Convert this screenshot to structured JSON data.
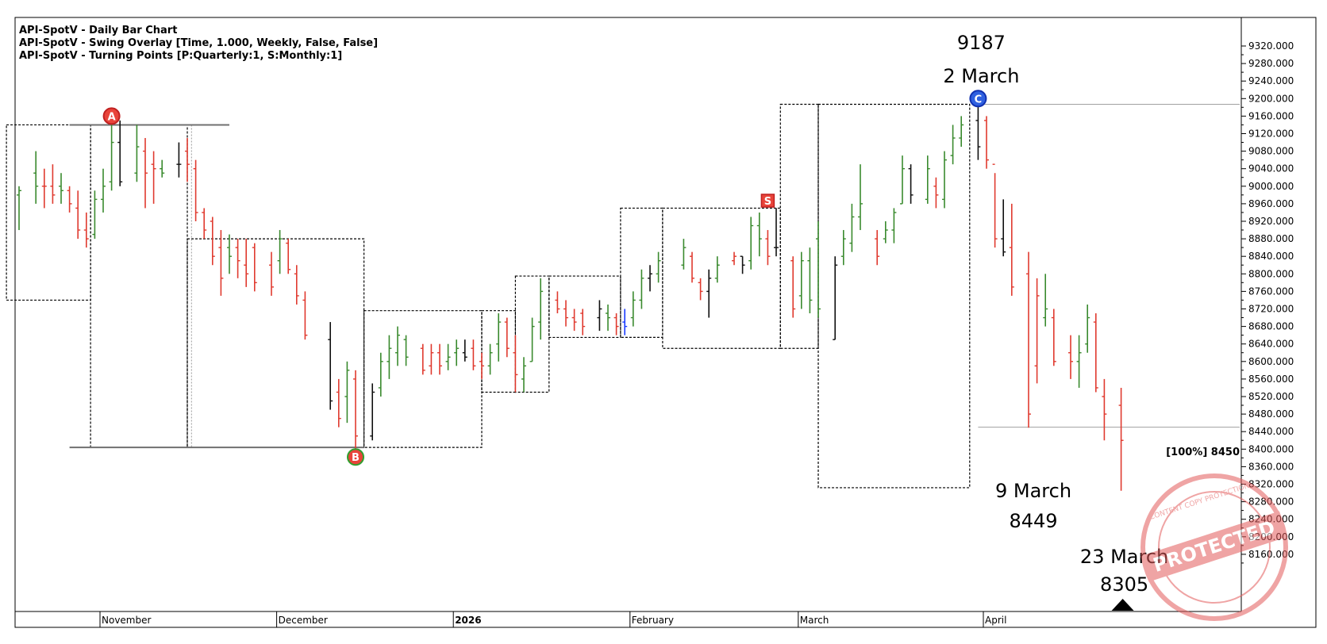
{
  "header": [
    "API-SpotV - Daily Bar Chart",
    "API-SpotV - Swing Overlay [Time, 1.000, Weekly, False, False]",
    "API-SpotV - Turning Points [P:Quarterly:1, S:Monthly:1]"
  ],
  "colors": {
    "up": "#3a8a2e",
    "down": "#e03a2f",
    "neutral": "#111111",
    "blue": "#1a3cff",
    "level_line": "#7a7a7a",
    "stamp": "#e35b5b"
  },
  "chart_data": {
    "type": "ohlc",
    "ylim": [
      8130,
      9335
    ],
    "y_ticks": [
      9320,
      9280,
      9240,
      9200,
      9160,
      9120,
      9080,
      9040,
      9000,
      8960,
      8920,
      8880,
      8840,
      8800,
      8760,
      8720,
      8680,
      8640,
      8600,
      8560,
      8520,
      8480,
      8440,
      8400,
      8360,
      8320,
      8280,
      8240,
      8200,
      8160
    ],
    "y_tick_labels": [
      "9320.000",
      "9280.000",
      "9240.000",
      "9200.000",
      "9160.000",
      "9120.000",
      "9080.000",
      "9040.000",
      "9000.000",
      "8960.000",
      "8920.000",
      "8880.000",
      "8840.000",
      "8800.000",
      "8760.000",
      "8720.000",
      "8680.000",
      "8640.000",
      "8600.000",
      "8560.000",
      "8520.000",
      "8480.000",
      "8440.000",
      "8400.000",
      "8360.000",
      "8320.000",
      "8280.000",
      "8240.000",
      "8200.000",
      "8160.000"
    ],
    "x_months": [
      {
        "label": "November",
        "bar": 10,
        "bold": false
      },
      {
        "label": "December",
        "bar": 31,
        "bold": false
      },
      {
        "label": "2026",
        "bar": 52,
        "bold": true
      },
      {
        "label": "February",
        "bar": 73,
        "bold": false
      },
      {
        "label": "March",
        "bar": 93,
        "bold": false
      },
      {
        "label": "April",
        "bar": 115,
        "bold": false
      }
    ],
    "bars": [
      {
        "i": 0,
        "o": 8980,
        "h": 9000,
        "l": 8900,
        "c": 8990,
        "d": "up"
      },
      {
        "i": 2,
        "o": 9030,
        "h": 9080,
        "l": 8960,
        "c": 9000,
        "d": "up"
      },
      {
        "i": 3,
        "o": 9000,
        "h": 9040,
        "l": 8950,
        "c": 9000,
        "d": "down"
      },
      {
        "i": 4,
        "o": 9000,
        "h": 9050,
        "l": 8960,
        "c": 8980,
        "d": "down"
      },
      {
        "i": 5,
        "o": 9000,
        "h": 9030,
        "l": 8960,
        "c": 8990,
        "d": "up"
      },
      {
        "i": 6,
        "o": 8990,
        "h": 9000,
        "l": 8940,
        "c": 8960,
        "d": "down"
      },
      {
        "i": 7,
        "o": 8950,
        "h": 8990,
        "l": 8880,
        "c": 8900,
        "d": "down"
      },
      {
        "i": 8,
        "o": 8900,
        "h": 8940,
        "l": 8860,
        "c": 8880,
        "d": "down"
      },
      {
        "i": 9,
        "o": 8890,
        "h": 8990,
        "l": 8880,
        "c": 8970,
        "d": "up"
      },
      {
        "i": 10,
        "o": 8970,
        "h": 9040,
        "l": 8940,
        "c": 9000,
        "d": "up"
      },
      {
        "i": 11,
        "o": 9010,
        "h": 9140,
        "l": 8990,
        "c": 9100,
        "d": "up"
      },
      {
        "i": 12,
        "o": 9100,
        "h": 9150,
        "l": 9000,
        "c": 9010,
        "d": "neutral"
      },
      {
        "i": 14,
        "o": 9030,
        "h": 9140,
        "l": 9010,
        "c": 9090,
        "d": "up"
      },
      {
        "i": 15,
        "o": 9080,
        "h": 9110,
        "l": 8950,
        "c": 9030,
        "d": "down"
      },
      {
        "i": 16,
        "o": 9050,
        "h": 9080,
        "l": 8960,
        "c": 9040,
        "d": "down"
      },
      {
        "i": 17,
        "o": 9040,
        "h": 9060,
        "l": 9020,
        "c": 9030,
        "d": "up"
      },
      {
        "i": 19,
        "o": 9050,
        "h": 9100,
        "l": 9020,
        "c": 9050,
        "d": "neutral"
      },
      {
        "i": 20,
        "o": 9080,
        "h": 9110,
        "l": 9010,
        "c": 9050,
        "d": "down"
      },
      {
        "i": 21,
        "o": 9040,
        "h": 9060,
        "l": 8920,
        "c": 8940,
        "d": "down"
      },
      {
        "i": 22,
        "o": 8940,
        "h": 8950,
        "l": 8880,
        "c": 8900,
        "d": "down"
      },
      {
        "i": 23,
        "o": 8920,
        "h": 8930,
        "l": 8820,
        "c": 8840,
        "d": "down"
      },
      {
        "i": 24,
        "o": 8860,
        "h": 8900,
        "l": 8750,
        "c": 8790,
        "d": "down"
      },
      {
        "i": 25,
        "o": 8860,
        "h": 8890,
        "l": 8800,
        "c": 8840,
        "d": "up"
      },
      {
        "i": 26,
        "o": 8860,
        "h": 8880,
        "l": 8790,
        "c": 8830,
        "d": "down"
      },
      {
        "i": 27,
        "o": 8820,
        "h": 8880,
        "l": 8770,
        "c": 8800,
        "d": "down"
      },
      {
        "i": 28,
        "o": 8860,
        "h": 8870,
        "l": 8760,
        "c": 8780,
        "d": "down"
      },
      {
        "i": 30,
        "o": 8820,
        "h": 8850,
        "l": 8750,
        "c": 8770,
        "d": "down"
      },
      {
        "i": 31,
        "o": 8830,
        "h": 8900,
        "l": 8800,
        "c": 8880,
        "d": "up"
      },
      {
        "i": 32,
        "o": 8870,
        "h": 8880,
        "l": 8800,
        "c": 8810,
        "d": "down"
      },
      {
        "i": 33,
        "o": 8800,
        "h": 8820,
        "l": 8730,
        "c": 8750,
        "d": "down"
      },
      {
        "i": 34,
        "o": 8740,
        "h": 8760,
        "l": 8650,
        "c": 8660,
        "d": "down"
      },
      {
        "i": 37,
        "o": 8650,
        "h": 8690,
        "l": 8490,
        "c": 8510,
        "d": "neutral"
      },
      {
        "i": 38,
        "o": 8530,
        "h": 8560,
        "l": 8450,
        "c": 8470,
        "d": "down"
      },
      {
        "i": 39,
        "o": 8520,
        "h": 8600,
        "l": 8460,
        "c": 8580,
        "d": "up"
      },
      {
        "i": 40,
        "o": 8560,
        "h": 8580,
        "l": 8400,
        "c": 8430,
        "d": "down"
      },
      {
        "i": 42,
        "o": 8430,
        "h": 8550,
        "l": 8420,
        "c": 8530,
        "d": "neutral"
      },
      {
        "i": 43,
        "o": 8540,
        "h": 8620,
        "l": 8520,
        "c": 8600,
        "d": "up"
      },
      {
        "i": 44,
        "o": 8600,
        "h": 8660,
        "l": 8560,
        "c": 8630,
        "d": "up"
      },
      {
        "i": 45,
        "o": 8620,
        "h": 8680,
        "l": 8590,
        "c": 8660,
        "d": "up"
      },
      {
        "i": 46,
        "o": 8650,
        "h": 8660,
        "l": 8590,
        "c": 8610,
        "d": "up"
      },
      {
        "i": 48,
        "o": 8630,
        "h": 8640,
        "l": 8570,
        "c": 8580,
        "d": "down"
      },
      {
        "i": 49,
        "o": 8590,
        "h": 8640,
        "l": 8570,
        "c": 8620,
        "d": "down"
      },
      {
        "i": 50,
        "o": 8620,
        "h": 8640,
        "l": 8570,
        "c": 8590,
        "d": "down"
      },
      {
        "i": 51,
        "o": 8600,
        "h": 8640,
        "l": 8580,
        "c": 8610,
        "d": "up"
      },
      {
        "i": 52,
        "o": 8620,
        "h": 8650,
        "l": 8590,
        "c": 8630,
        "d": "up"
      },
      {
        "i": 53,
        "o": 8620,
        "h": 8650,
        "l": 8600,
        "c": 8610,
        "d": "neutral"
      },
      {
        "i": 54,
        "o": 8630,
        "h": 8650,
        "l": 8580,
        "c": 8590,
        "d": "down"
      },
      {
        "i": 55,
        "o": 8600,
        "h": 8620,
        "l": 8560,
        "c": 8590,
        "d": "down"
      },
      {
        "i": 56,
        "o": 8590,
        "h": 8640,
        "l": 8570,
        "c": 8620,
        "d": "up"
      },
      {
        "i": 57,
        "o": 8640,
        "h": 8710,
        "l": 8600,
        "c": 8690,
        "d": "up"
      },
      {
        "i": 58,
        "o": 8690,
        "h": 8700,
        "l": 8610,
        "c": 8630,
        "d": "down"
      },
      {
        "i": 59,
        "o": 8620,
        "h": 8660,
        "l": 8530,
        "c": 8570,
        "d": "down"
      },
      {
        "i": 60,
        "o": 8560,
        "h": 8610,
        "l": 8530,
        "c": 8590,
        "d": "up"
      },
      {
        "i": 61,
        "o": 8600,
        "h": 8700,
        "l": 8600,
        "c": 8680,
        "d": "up"
      },
      {
        "i": 62,
        "o": 8690,
        "h": 8790,
        "l": 8650,
        "c": 8760,
        "d": "up"
      },
      {
        "i": 64,
        "o": 8740,
        "h": 8760,
        "l": 8710,
        "c": 8720,
        "d": "down"
      },
      {
        "i": 65,
        "o": 8720,
        "h": 8740,
        "l": 8680,
        "c": 8700,
        "d": "down"
      },
      {
        "i": 66,
        "o": 8700,
        "h": 8720,
        "l": 8670,
        "c": 8690,
        "d": "down"
      },
      {
        "i": 67,
        "o": 8710,
        "h": 8720,
        "l": 8660,
        "c": 8680,
        "d": "down"
      },
      {
        "i": 69,
        "o": 8700,
        "h": 8740,
        "l": 8670,
        "c": 8720,
        "d": "neutral"
      },
      {
        "i": 70,
        "o": 8710,
        "h": 8730,
        "l": 8670,
        "c": 8700,
        "d": "up"
      },
      {
        "i": 71,
        "o": 8700,
        "h": 8710,
        "l": 8660,
        "c": 8680,
        "d": "down"
      },
      {
        "i": 72,
        "o": 8690,
        "h": 8720,
        "l": 8660,
        "c": 8680,
        "d": "blue"
      },
      {
        "i": 73,
        "o": 8700,
        "h": 8760,
        "l": 8680,
        "c": 8740,
        "d": "up"
      },
      {
        "i": 74,
        "o": 8740,
        "h": 8810,
        "l": 8720,
        "c": 8790,
        "d": "up"
      },
      {
        "i": 75,
        "o": 8790,
        "h": 8820,
        "l": 8760,
        "c": 8800,
        "d": "neutral"
      },
      {
        "i": 76,
        "o": 8800,
        "h": 8850,
        "l": 8780,
        "c": 8830,
        "d": "up"
      },
      {
        "i": 79,
        "o": 8820,
        "h": 8880,
        "l": 8810,
        "c": 8860,
        "d": "up"
      },
      {
        "i": 80,
        "o": 8840,
        "h": 8850,
        "l": 8780,
        "c": 8790,
        "d": "down"
      },
      {
        "i": 81,
        "o": 8780,
        "h": 8790,
        "l": 8740,
        "c": 8760,
        "d": "down"
      },
      {
        "i": 82,
        "o": 8760,
        "h": 8810,
        "l": 8700,
        "c": 8790,
        "d": "neutral"
      },
      {
        "i": 83,
        "o": 8790,
        "h": 8840,
        "l": 8780,
        "c": 8820,
        "d": "up"
      },
      {
        "i": 85,
        "o": 8830,
        "h": 8850,
        "l": 8820,
        "c": 8840,
        "d": "down"
      },
      {
        "i": 86,
        "o": 8840,
        "h": 8840,
        "l": 8800,
        "c": 8820,
        "d": "neutral"
      },
      {
        "i": 87,
        "o": 8830,
        "h": 8930,
        "l": 8810,
        "c": 8910,
        "d": "up"
      },
      {
        "i": 88,
        "o": 8910,
        "h": 8940,
        "l": 8840,
        "c": 8880,
        "d": "up"
      },
      {
        "i": 89,
        "o": 8880,
        "h": 8900,
        "l": 8820,
        "c": 8840,
        "d": "down"
      },
      {
        "i": 90,
        "o": 8860,
        "h": 8950,
        "l": 8840,
        "c": 8860,
        "d": "neutral"
      }
    ],
    "bars_part2": [
      {
        "i": 92,
        "o": 8830,
        "h": 8840,
        "l": 8700,
        "c": 8720,
        "d": "down"
      },
      {
        "i": 93,
        "o": 8750,
        "h": 8850,
        "l": 8720,
        "c": 8830,
        "d": "up"
      },
      {
        "i": 94,
        "o": 8830,
        "h": 8860,
        "l": 8710,
        "c": 8740,
        "d": "up"
      },
      {
        "i": 95,
        "o": 8880,
        "h": 8920,
        "l": 8700,
        "c": 8720,
        "d": "up"
      },
      {
        "i": 97,
        "o": 8650,
        "h": 8840,
        "l": 8650,
        "c": 8820,
        "d": "neutral"
      },
      {
        "i": 98,
        "o": 8840,
        "h": 8900,
        "l": 8820,
        "c": 8880,
        "d": "up"
      },
      {
        "i": 99,
        "o": 8870,
        "h": 8960,
        "l": 8850,
        "c": 8930,
        "d": "up"
      },
      {
        "i": 100,
        "o": 8930,
        "h": 9050,
        "l": 8900,
        "c": 8960,
        "d": "up"
      },
      {
        "i": 102,
        "o": 8880,
        "h": 8900,
        "l": 8820,
        "c": 8840,
        "d": "down"
      },
      {
        "i": 103,
        "o": 8880,
        "h": 8920,
        "l": 8870,
        "c": 8900,
        "d": "up"
      },
      {
        "i": 104,
        "o": 8900,
        "h": 8950,
        "l": 8870,
        "c": 8940,
        "d": "up"
      },
      {
        "i": 105,
        "o": 8960,
        "h": 9070,
        "l": 8960,
        "c": 9040,
        "d": "up"
      },
      {
        "i": 106,
        "o": 9040,
        "h": 9050,
        "l": 8960,
        "c": 8980,
        "d": "neutral"
      },
      {
        "i": 108,
        "o": 8970,
        "h": 9070,
        "l": 8960,
        "c": 9040,
        "d": "up"
      },
      {
        "i": 109,
        "o": 9000,
        "h": 9020,
        "l": 8950,
        "c": 8980,
        "d": "down"
      },
      {
        "i": 110,
        "o": 8970,
        "h": 9080,
        "l": 8950,
        "c": 9060,
        "d": "up"
      },
      {
        "i": 111,
        "o": 9070,
        "h": 9140,
        "l": 9050,
        "c": 9110,
        "d": "up"
      },
      {
        "i": 112,
        "o": 9110,
        "h": 9160,
        "l": 9090,
        "c": 9140,
        "d": "up"
      },
      {
        "i": 114,
        "o": 9150,
        "h": 9187,
        "l": 9060,
        "c": 9090,
        "d": "neutral"
      },
      {
        "i": 115,
        "o": 9150,
        "h": 9160,
        "l": 9040,
        "c": 9060,
        "d": "down"
      },
      {
        "i": 116,
        "o": 9050,
        "h": 9030,
        "l": 8860,
        "c": 8880,
        "d": "down"
      },
      {
        "i": 117,
        "o": 8880,
        "h": 8970,
        "l": 8840,
        "c": 8850,
        "d": "neutral"
      },
      {
        "i": 118,
        "o": 8860,
        "h": 8960,
        "l": 8750,
        "c": 8770,
        "d": "down"
      },
      {
        "i": 120,
        "o": 8800,
        "h": 8850,
        "l": 8449,
        "c": 8480,
        "d": "down"
      },
      {
        "i": 121,
        "o": 8590,
        "h": 8790,
        "l": 8550,
        "c": 8750,
        "d": "down"
      },
      {
        "i": 122,
        "o": 8700,
        "h": 8800,
        "l": 8680,
        "c": 8720,
        "d": "up"
      },
      {
        "i": 123,
        "o": 8700,
        "h": 8720,
        "l": 8590,
        "c": 8600,
        "d": "down"
      },
      {
        "i": 125,
        "o": 8620,
        "h": 8660,
        "l": 8560,
        "c": 8600,
        "d": "down"
      },
      {
        "i": 126,
        "o": 8600,
        "h": 8660,
        "l": 8540,
        "c": 8620,
        "d": "up"
      },
      {
        "i": 127,
        "o": 8640,
        "h": 8730,
        "l": 8620,
        "c": 8700,
        "d": "up"
      },
      {
        "i": 128,
        "o": 8690,
        "h": 8710,
        "l": 8530,
        "c": 8540,
        "d": "down"
      },
      {
        "i": 129,
        "o": 8520,
        "h": 8560,
        "l": 8420,
        "c": 8480,
        "d": "down"
      },
      {
        "i": 131,
        "o": 8500,
        "h": 8540,
        "l": 8305,
        "c": 8420,
        "d": "down"
      }
    ],
    "boxes": [
      {
        "x0": -1.5,
        "x1": 8.5,
        "y0": 8740,
        "y1": 9140
      },
      {
        "x0": 8.5,
        "x1": 20,
        "y0": 8404,
        "y1": 9140
      },
      {
        "x0": 20,
        "x1": 41,
        "y0": 8404,
        "y1": 8880
      },
      {
        "x0": 41,
        "x1": 55,
        "y0": 8404,
        "y1": 8716
      },
      {
        "x0": 55,
        "x1": 59,
        "y0": 8530,
        "y1": 8716
      },
      {
        "x0": 59,
        "x1": 63,
        "y0": 8530,
        "y1": 8795
      },
      {
        "x0": 63,
        "x1": 71.5,
        "y0": 8655,
        "y1": 8795
      },
      {
        "x0": 71.5,
        "x1": 76.5,
        "y0": 8655,
        "y1": 8950
      },
      {
        "x0": 76.5,
        "x1": 90.5,
        "y0": 8630,
        "y1": 8950
      },
      {
        "x0": 90.5,
        "x1": 95,
        "y0": 8630,
        "y1": 9187
      },
      {
        "x0": 95,
        "x1": 113,
        "y0": 8312,
        "y1": 9187
      }
    ],
    "levels": [
      {
        "y": 9140,
        "x0": 6,
        "x1": 25,
        "color": "#707070"
      },
      {
        "y": 8404,
        "x0": 6,
        "x1": 41,
        "color": "#707070"
      },
      {
        "y": 9187,
        "x0": 114,
        "x1": 150,
        "color": "#a0a0a0"
      },
      {
        "y": 8450,
        "x0": 114,
        "x1": 150,
        "color": "#a0a0a0"
      }
    ],
    "vline_dotted": {
      "x": 20.5,
      "y0": 8404,
      "y1": 9140
    },
    "markers": [
      {
        "label": "A",
        "bar": 11,
        "y": 9160,
        "fill": "#e8443a",
        "stroke": "#c02020",
        "shape": "circle"
      },
      {
        "label": "B",
        "bar": 40,
        "y": 8382,
        "fill": "#e8443a",
        "stroke": "#2fa02f",
        "shape": "circle"
      },
      {
        "label": "C",
        "bar": 114,
        "y": 9200,
        "fill": "#2f60e0",
        "stroke": "#1030b0",
        "shape": "circle"
      },
      {
        "label": "S",
        "bar": 89,
        "y": 8967,
        "fill": "#e8443a",
        "stroke": "#c02020",
        "shape": "square"
      }
    ],
    "annotations": [
      {
        "lines": [
          "9187",
          "2 March"
        ],
        "bar": 114
      },
      {
        "lines": [
          "9 March",
          "8449"
        ],
        "bar": 120
      },
      {
        "lines": [
          "23 March",
          "8305"
        ],
        "bar": 131
      }
    ],
    "level_label": "[100%] 8450",
    "arrow_bar": 131
  },
  "stamp": {
    "main": "PROTECTED",
    "ring": "CONTENT COPY PROTECTION"
  }
}
